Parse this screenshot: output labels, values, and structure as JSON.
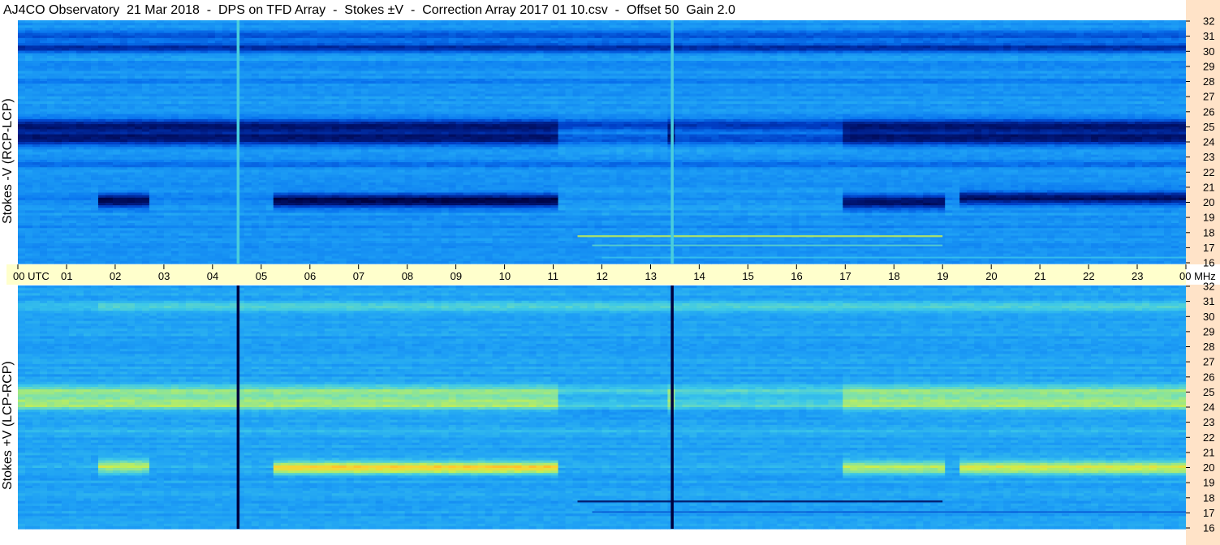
{
  "title": "AJ4CO Observatory  21 Mar 2018  -  DPS on TFD Array  -  Stokes ±V  -  Correction Array 2017 01 10.csv  -  Offset 50  Gain 2.0",
  "panels": {
    "top": {
      "ylabel": "Stokes -V (RCP-LCP)"
    },
    "bottom": {
      "ylabel": "Stokes +V (LCP-RCP)"
    }
  },
  "time_axis": {
    "labels": [
      "00 UTC",
      "01",
      "02",
      "03",
      "04",
      "05",
      "06",
      "07",
      "08",
      "09",
      "10",
      "11",
      "12",
      "13",
      "14",
      "15",
      "16",
      "17",
      "18",
      "19",
      "20",
      "21",
      "22",
      "23",
      "00 MHz"
    ]
  },
  "freq_axis": {
    "labels": [
      "32",
      "31",
      "30",
      "29",
      "28",
      "27",
      "26",
      "25",
      "24",
      "23",
      "22",
      "21",
      "20",
      "19",
      "18",
      "17",
      "16"
    ]
  },
  "colors": {
    "background": "#ffffff",
    "timebar": "#ffffcc",
    "freqbar": "#ffe3c8",
    "colormap": [
      "#00003c",
      "#001a80",
      "#0040c8",
      "#0a78f0",
      "#1ea0f5",
      "#3cc8e8",
      "#78e0b0",
      "#c8f050",
      "#ffd030",
      "#ff7820"
    ]
  },
  "chart_data": [
    {
      "type": "heatmap",
      "name": "Stokes -V (RCP-LCP)",
      "xlabel": "UTC",
      "ylabel": "Stokes -V (RCP-LCP)",
      "xlim": [
        0,
        24
      ],
      "ylim": [
        16,
        32
      ],
      "z_baseline": 0.42,
      "freq_features": [
        {
          "f": 31.0,
          "w": 0.35,
          "d": 0.18
        },
        {
          "f": 30.2,
          "w": 0.3,
          "d": 0.25
        },
        {
          "f": 29.0,
          "w": 0.2,
          "d": 0.08
        },
        {
          "f": 28.0,
          "w": 0.2,
          "d": 0.06
        },
        {
          "f": 25.0,
          "w": 0.45,
          "d": 0.34
        },
        {
          "f": 24.2,
          "w": 0.4,
          "d": 0.34
        },
        {
          "f": 22.5,
          "w": 0.25,
          "d": 0.1
        },
        {
          "f": 20.2,
          "w": 0.55,
          "d": 0.05
        },
        {
          "f": 18.5,
          "w": 0.3,
          "d": 0.03
        }
      ],
      "time_features": [
        {
          "t0": 1.65,
          "t1": 2.75,
          "f": 20.1,
          "w": 0.45,
          "d": 0.34
        },
        {
          "t0": 5.2,
          "t1": 11.05,
          "f": 20.1,
          "w": 0.45,
          "d": 0.36
        },
        {
          "t0": 17.0,
          "t1": 19.0,
          "f": 20.0,
          "w": 0.45,
          "d": 0.33
        },
        {
          "t0": 19.3,
          "t1": 24.0,
          "f": 20.3,
          "w": 0.45,
          "d": 0.3
        },
        {
          "t0": 11.1,
          "t1": 13.4,
          "f": 24.5,
          "w": 0.8,
          "d": -0.22
        },
        {
          "t0": 13.5,
          "t1": 17.0,
          "f": 24.5,
          "w": 0.8,
          "d": -0.18
        },
        {
          "t0": 11.1,
          "t1": 17.0,
          "f": 20.2,
          "w": 0.8,
          "d": -0.04
        }
      ],
      "emission": [
        {
          "t0": 11.5,
          "t1": 19.0,
          "f": 17.8,
          "w": 0.12,
          "dz": 0.35
        },
        {
          "t0": 11.8,
          "t1": 19.0,
          "f": 17.2,
          "w": 0.1,
          "dz": 0.2
        },
        {
          "t0": 12.0,
          "t1": 24.0,
          "f": 16.4,
          "w": 0.1,
          "dz": 0.12
        }
      ],
      "vertical_lines": [
        {
          "t": 4.53,
          "z": 0.58
        },
        {
          "t": 13.45,
          "z": 0.58
        }
      ]
    },
    {
      "type": "heatmap",
      "name": "Stokes +V (LCP-RCP)",
      "xlabel": "UTC",
      "ylabel": "Stokes +V (LCP-RCP)",
      "xlim": [
        0,
        24
      ],
      "ylim": [
        16,
        32
      ],
      "z_baseline": 0.45,
      "freq_features": [
        {
          "f": 30.6,
          "w": 0.4,
          "d": -0.12
        },
        {
          "f": 25.0,
          "w": 0.45,
          "d": -0.25
        },
        {
          "f": 24.2,
          "w": 0.4,
          "d": -0.28
        },
        {
          "f": 22.5,
          "w": 0.25,
          "d": -0.06
        },
        {
          "f": 20.2,
          "w": 0.55,
          "d": -0.03
        }
      ],
      "time_features": [
        {
          "t0": 1.65,
          "t1": 2.75,
          "f": 20.1,
          "w": 0.45,
          "d": -0.28
        },
        {
          "t0": 5.2,
          "t1": 11.05,
          "f": 20.0,
          "w": 0.4,
          "d": -0.4
        },
        {
          "t0": 17.0,
          "t1": 19.0,
          "f": 20.0,
          "w": 0.45,
          "d": -0.28
        },
        {
          "t0": 19.3,
          "t1": 24.0,
          "f": 20.0,
          "w": 0.45,
          "d": -0.32
        },
        {
          "t0": 11.1,
          "t1": 13.4,
          "f": 24.5,
          "w": 0.8,
          "d": 0.2
        },
        {
          "t0": 13.5,
          "t1": 17.0,
          "f": 24.5,
          "w": 0.8,
          "d": 0.16
        },
        {
          "t0": 0.0,
          "t1": 1.6,
          "f": 30.6,
          "w": 0.4,
          "d": 0.06
        }
      ],
      "emission": [
        {
          "t0": 11.5,
          "t1": 19.0,
          "f": 17.8,
          "w": 0.12,
          "dz": -0.4
        },
        {
          "t0": 11.8,
          "t1": 24.0,
          "f": 17.1,
          "w": 0.1,
          "dz": -0.2
        }
      ],
      "vertical_lines": [
        {
          "t": 4.53,
          "z": 0.0
        },
        {
          "t": 13.45,
          "z": 0.0
        }
      ]
    }
  ]
}
